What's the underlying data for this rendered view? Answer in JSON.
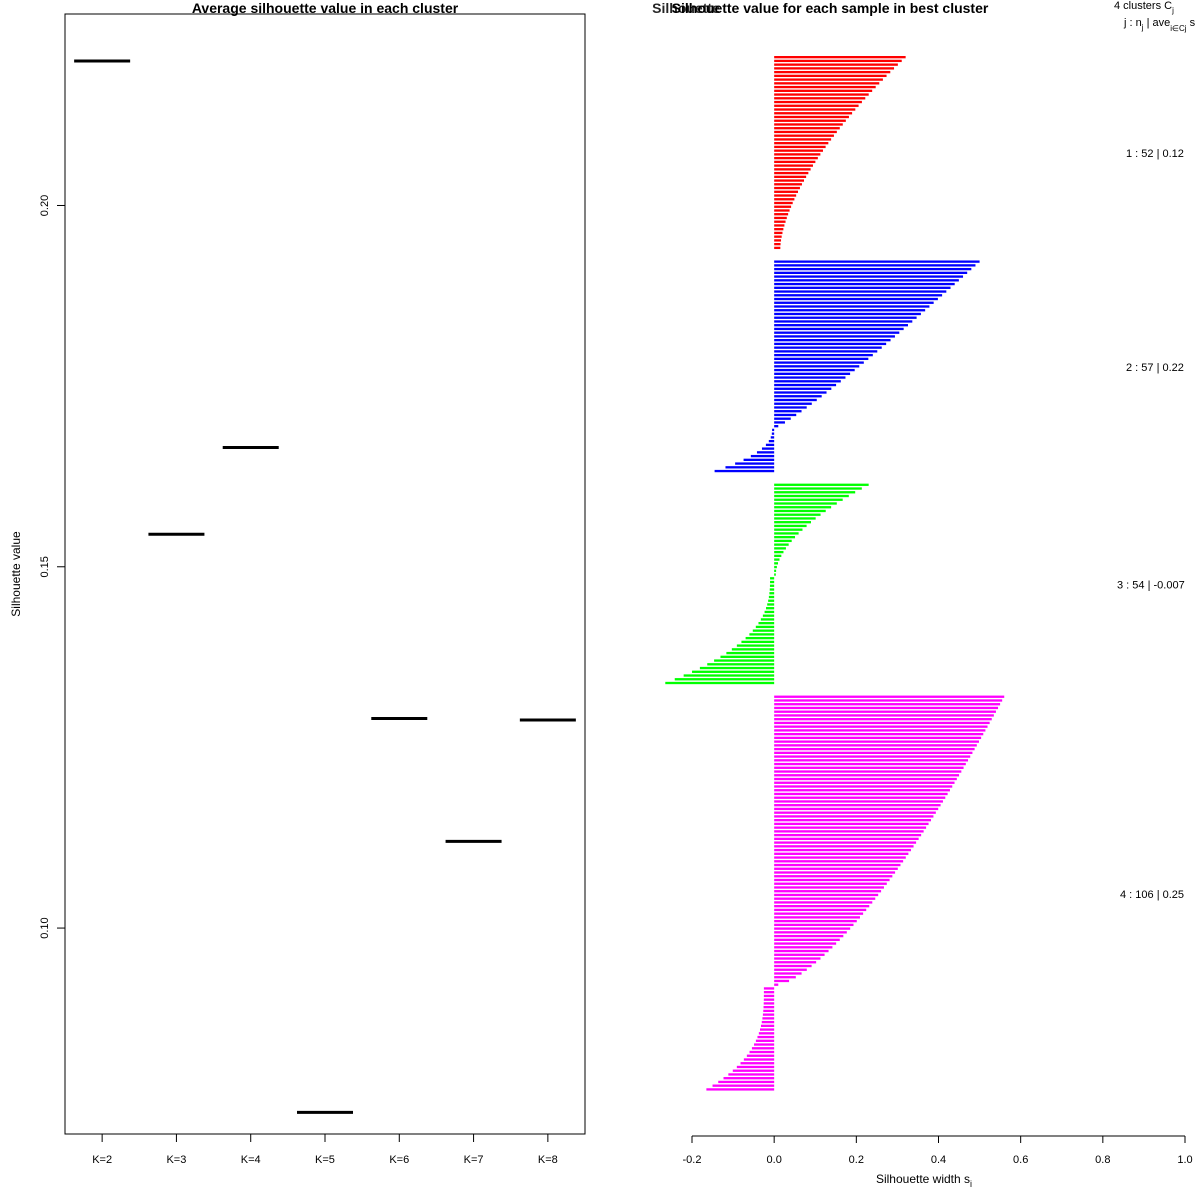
{
  "chart_data": [
    {
      "type": "scatter",
      "title": "Average silhouette value in each cluster",
      "xlabel": "",
      "ylabel": "Silhouette value",
      "categories": [
        "K=2",
        "K=3",
        "K=4",
        "K=5",
        "K=6",
        "K=7",
        "K=8"
      ],
      "values": [
        0.22,
        0.1545,
        0.1665,
        0.0745,
        0.129,
        0.112,
        0.1288
      ],
      "yticks": [
        "0.10",
        "0.15",
        "0.20"
      ],
      "ylim": [
        0.0715,
        0.2265
      ]
    },
    {
      "type": "bar",
      "title": "Silhouette value for each sample in best cluster",
      "title_overlap": "Silhouette",
      "xlabel": "Silhouette width s",
      "xlabel_sub": "i",
      "xlim": [
        -0.2,
        1.0
      ],
      "xticks": [
        "-0.2",
        "0.0",
        "0.2",
        "0.4",
        "0.6",
        "0.8",
        "1.0"
      ],
      "header": {
        "line1": "4  clusters  C",
        "line1_sub": "j",
        "line2": "j :  n",
        "line2_sub": "j",
        "line2_rest": " | ave",
        "line2_sub2": "i∈Cj",
        "line2_end": "  s"
      },
      "series": [
        {
          "name": "1",
          "color": "#ff0000",
          "n": 52,
          "label": "1 :  52  |  0.12",
          "max": 0.32,
          "min": 0.015,
          "shape": 1.6,
          "n_neg": 0,
          "neg_max": 0,
          "neg_min": 0,
          "neg_shape": 1
        },
        {
          "name": "2",
          "color": "#0000ff",
          "n": 57,
          "label": "2 :  57  |  0.22",
          "max": 0.5,
          "min": 0.01,
          "shape": 0.9,
          "n_neg": 12,
          "neg_max": -0.145,
          "neg_min": -0.005,
          "neg_shape": 2.2
        },
        {
          "name": "3",
          "color": "#00ff00",
          "n": 54,
          "label": "3 :  54  |  -0.007",
          "max": 0.23,
          "min": 0.004,
          "shape": 1.8,
          "n_neg": 29,
          "neg_max": -0.265,
          "neg_min": -0.01,
          "neg_shape": 2.6
        },
        {
          "name": "4",
          "color": "#ff00ff",
          "n": 106,
          "label": "4 :  106  |  0.25",
          "max": 0.56,
          "min": 0.01,
          "shape": 0.7,
          "n_neg": 28,
          "neg_max": -0.165,
          "neg_min": -0.025,
          "neg_shape": 3.0
        }
      ]
    }
  ]
}
